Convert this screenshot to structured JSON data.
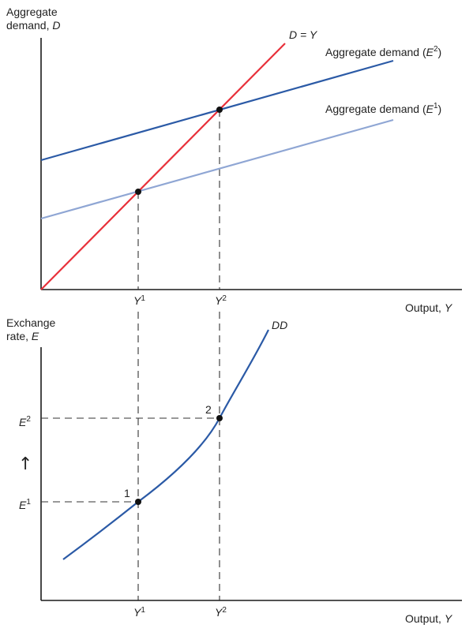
{
  "top_panel": {
    "y_axis_label_line1": "Aggregate",
    "y_axis_label_line2_text": "demand, ",
    "y_axis_label_line2_var": "D",
    "x_axis_label_text": "Output, ",
    "x_axis_label_var": "Y",
    "line_45_label": "D = Y",
    "ad2_label_text": "Aggregate demand (",
    "ad2_label_var": "E",
    "ad2_label_sup": "2",
    "ad2_label_close": ")",
    "ad1_label_text": "Aggregate demand (",
    "ad1_label_var": "E",
    "ad1_label_sup": "1",
    "ad1_label_close": ")",
    "tick_y1_var": "Y",
    "tick_y1_sup": "1",
    "tick_y2_var": "Y",
    "tick_y2_sup": "2"
  },
  "bottom_panel": {
    "y_axis_label_line1": "Exchange",
    "y_axis_label_line2_text": "rate, ",
    "y_axis_label_line2_var": "E",
    "x_axis_label_text": "Output, ",
    "x_axis_label_var": "Y",
    "curve_label": "DD",
    "arrow_glyph": "↑",
    "tick_e2_var": "E",
    "tick_e2_sup": "2",
    "tick_e1_var": "E",
    "tick_e1_sup": "1",
    "tick_y1_var": "Y",
    "tick_y1_sup": "1",
    "tick_y2_var": "Y",
    "tick_y2_sup": "2",
    "point_1_label": "1",
    "point_2_label": "2"
  },
  "colors": {
    "line_45": "#e8303a",
    "ad_e2": "#2b5aa6",
    "ad_e1": "#8fa6d4",
    "dd_curve": "#2b5aa6",
    "axis": "#1a1a1a",
    "points": "#111111"
  }
}
